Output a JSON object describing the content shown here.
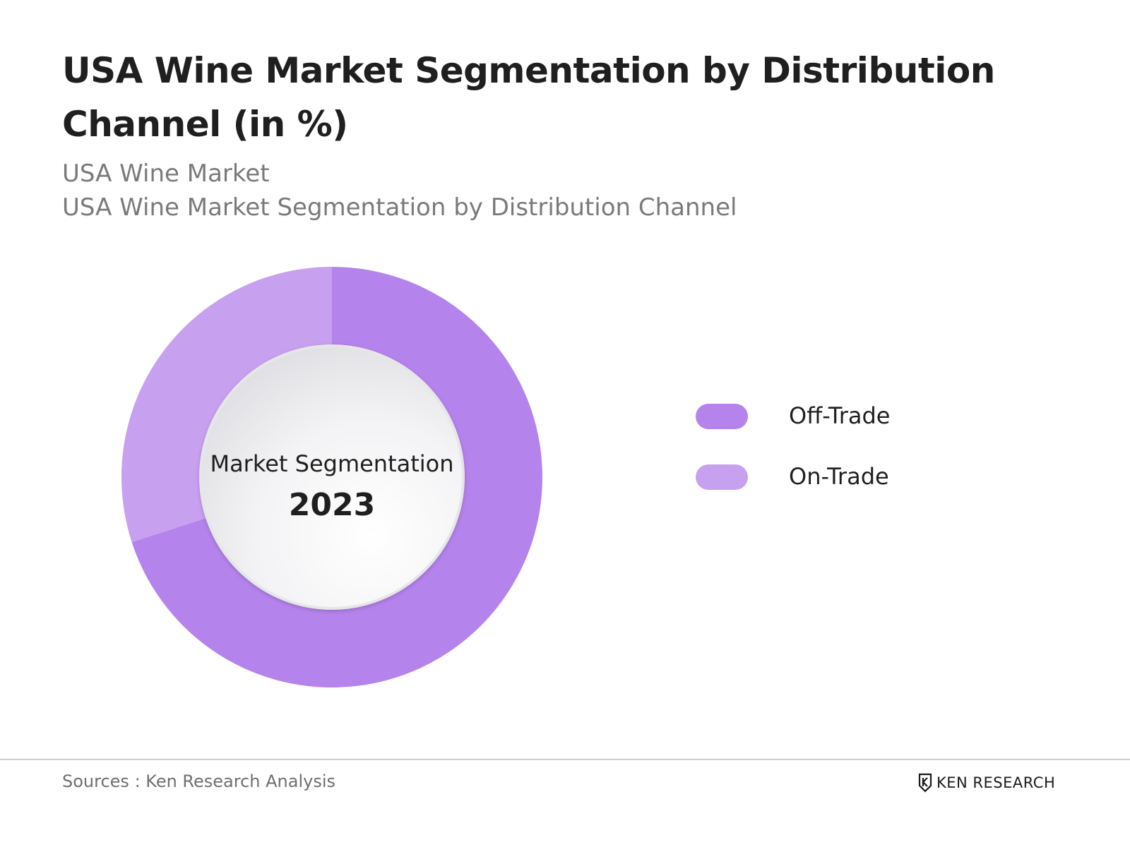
{
  "header": {
    "title": "USA Wine Market Segmentation by Distribution Channel (in %)",
    "subtitle_1": "USA Wine Market",
    "subtitle_2": "USA Wine Market Segmentation by Distribution Channel"
  },
  "center": {
    "label": "Market Segmentation",
    "year": "2023"
  },
  "footer": {
    "source": "Sources : Ken Research Analysis",
    "brand": "KEN RESEARCH"
  },
  "chart_data": {
    "type": "pie",
    "variant": "donut",
    "title": "USA Wine Market Segmentation by Distribution Channel (in %)",
    "categories": [
      "Off-Trade",
      "On-Trade"
    ],
    "values": [
      70,
      30
    ],
    "colors": [
      "#b583ec",
      "#c8a0f0"
    ],
    "legend_position": "right"
  }
}
